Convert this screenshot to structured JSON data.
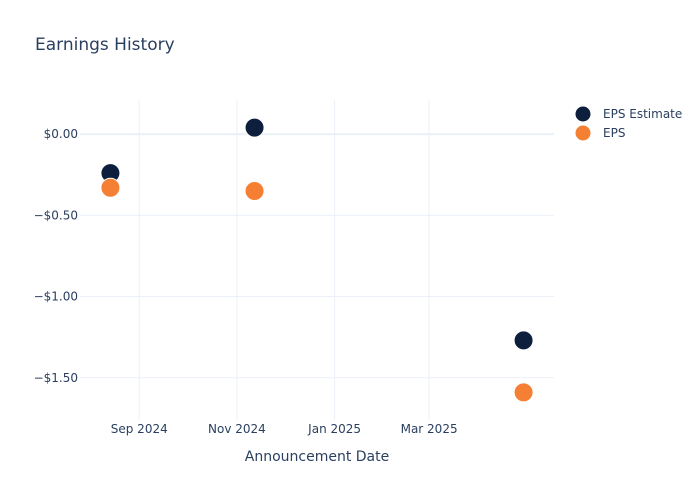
{
  "chart_data": {
    "type": "scatter",
    "title": "Earnings History",
    "xlabel": "Announcement Date",
    "ylabel": "",
    "x_ticks": [
      {
        "date": "2024-09-01",
        "label": "Sep 2024"
      },
      {
        "date": "2024-11-01",
        "label": "Nov 2024"
      },
      {
        "date": "2025-01-01",
        "label": "Jan 2025"
      },
      {
        "date": "2025-03-01",
        "label": "Mar 2025"
      }
    ],
    "y_ticks": [
      {
        "value": 0,
        "label": "$0.00"
      },
      {
        "value": -0.5,
        "label": "−$0.50"
      },
      {
        "value": -1.0,
        "label": "−$1.00"
      },
      {
        "value": -1.5,
        "label": "−$1.50"
      }
    ],
    "xlim": [
      "2024-07-26",
      "2025-05-18"
    ],
    "ylim": [
      -1.76,
      0.21
    ],
    "grid": true,
    "legend_position": "top-right",
    "series": [
      {
        "name": "EPS Estimate",
        "color": "#0d1f3c",
        "points": [
          {
            "x": "2024-08-14",
            "y": -0.24
          },
          {
            "x": "2024-11-12",
            "y": 0.04
          },
          {
            "x": "2025-04-29",
            "y": -1.27
          }
        ]
      },
      {
        "name": "EPS",
        "color": "#f57f33",
        "points": [
          {
            "x": "2024-08-14",
            "y": -0.33
          },
          {
            "x": "2024-11-12",
            "y": -0.35
          },
          {
            "x": "2025-04-29",
            "y": -1.59
          }
        ]
      }
    ]
  }
}
